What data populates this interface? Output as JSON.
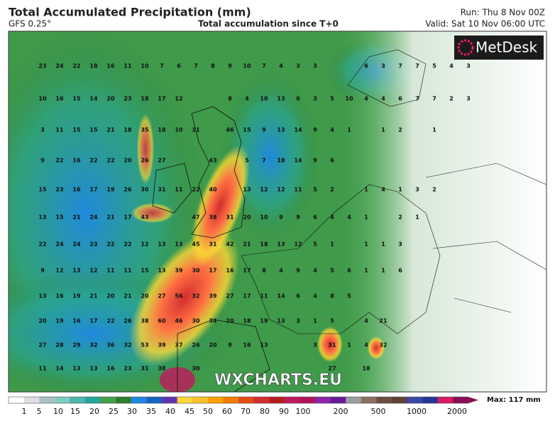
{
  "header": {
    "title": "Total Accumulated Precipitation (mm)",
    "model": "GFS 0.25°",
    "subtitle": "Total accumulation since T+0",
    "run": "Run: Thu 8 Nov 00Z",
    "valid": "Valid: Sat 10 Nov 06:00 UTC"
  },
  "logo": "MetDesk",
  "watermark": "WXCHARTS.EU",
  "grid": {
    "rows": [
      [
        23,
        24,
        22,
        18,
        16,
        11,
        10,
        7,
        6,
        7,
        8,
        9,
        10,
        7,
        4,
        3,
        3,
        null,
        null,
        6,
        3,
        7,
        7,
        5,
        4,
        3
      ],
      [
        10,
        16,
        15,
        14,
        20,
        23,
        18,
        17,
        12,
        null,
        null,
        8,
        4,
        10,
        13,
        6,
        3,
        5,
        10,
        4,
        4,
        6,
        7,
        7,
        2,
        3
      ],
      [
        3,
        11,
        15,
        15,
        21,
        18,
        35,
        18,
        10,
        11,
        null,
        46,
        15,
        9,
        13,
        14,
        9,
        4,
        1,
        null,
        1,
        2,
        null,
        1,
        null,
        null
      ],
      [
        9,
        22,
        16,
        22,
        22,
        20,
        26,
        27,
        null,
        null,
        43,
        null,
        5,
        7,
        18,
        14,
        9,
        6,
        null,
        null,
        null,
        null,
        null,
        null,
        null,
        null
      ],
      [
        15,
        23,
        16,
        17,
        19,
        26,
        30,
        31,
        11,
        22,
        40,
        null,
        13,
        12,
        12,
        11,
        5,
        2,
        null,
        1,
        4,
        1,
        3,
        2,
        null,
        null
      ],
      [
        13,
        15,
        21,
        24,
        21,
        17,
        43,
        null,
        null,
        47,
        38,
        31,
        20,
        10,
        9,
        9,
        6,
        4,
        4,
        1,
        null,
        2,
        1,
        null,
        null,
        null
      ],
      [
        22,
        24,
        24,
        23,
        22,
        22,
        12,
        13,
        13,
        45,
        31,
        42,
        21,
        18,
        13,
        12,
        5,
        1,
        null,
        1,
        1,
        3,
        null,
        null,
        null,
        null
      ],
      [
        9,
        12,
        13,
        12,
        11,
        11,
        15,
        13,
        39,
        30,
        17,
        16,
        17,
        8,
        4,
        9,
        4,
        5,
        6,
        1,
        1,
        6,
        null,
        null,
        null,
        null
      ],
      [
        13,
        16,
        19,
        21,
        20,
        21,
        20,
        27,
        56,
        32,
        39,
        27,
        17,
        11,
        14,
        6,
        4,
        8,
        5,
        null,
        null,
        null,
        null,
        null,
        null,
        null
      ],
      [
        20,
        19,
        16,
        17,
        22,
        26,
        38,
        60,
        46,
        30,
        34,
        20,
        18,
        19,
        13,
        3,
        1,
        5,
        null,
        4,
        21,
        null,
        null,
        null,
        null,
        null
      ],
      [
        27,
        28,
        29,
        32,
        36,
        32,
        53,
        39,
        37,
        26,
        20,
        9,
        16,
        13,
        null,
        null,
        3,
        31,
        1,
        4,
        32,
        null,
        null,
        null,
        null,
        null
      ],
      [
        11,
        14,
        13,
        13,
        16,
        23,
        31,
        38,
        null,
        30,
        null,
        null,
        null,
        null,
        null,
        null,
        null,
        27,
        null,
        18,
        null,
        null,
        null,
        null,
        null,
        null
      ]
    ]
  },
  "legend": {
    "labels": [
      1,
      5,
      10,
      15,
      20,
      25,
      30,
      35,
      40,
      45,
      50,
      60,
      70,
      80,
      90,
      100,
      200,
      500,
      1000,
      2000
    ],
    "max": "Max: 117 mm"
  }
}
